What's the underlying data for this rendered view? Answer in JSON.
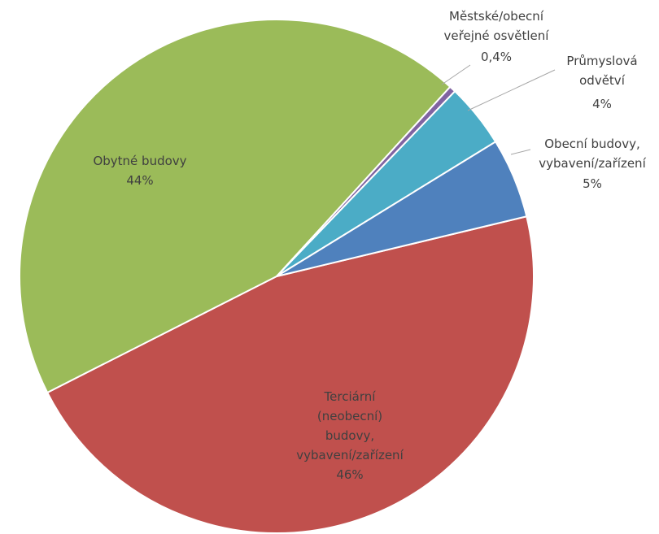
{
  "chart_data": {
    "type": "pie",
    "categories": [
      "Terciární\n(neobecní)\nbudovy,\nvybavení/zařízení",
      "Obytné budovy",
      "Městské/obecní\nveřejné osvětlení",
      "Průmyslová\nodvětví",
      "Obecní budovy,\nvybavení/zařízení"
    ],
    "values": [
      46,
      44,
      0.4,
      4,
      5
    ],
    "value_labels": [
      "46%",
      "44%",
      "0,4%",
      "4%",
      "5%"
    ],
    "colors": [
      "#c0504d",
      "#9bbb59",
      "#8064a2",
      "#4bacc6",
      "#4f81bd"
    ]
  }
}
